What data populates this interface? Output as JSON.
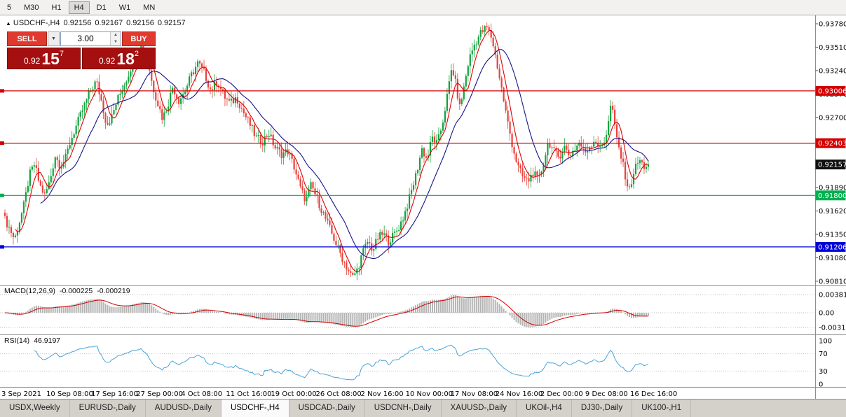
{
  "toolbar": {
    "timeframes": [
      "5",
      "M30",
      "H1",
      "H4",
      "D1",
      "W1",
      "MN"
    ],
    "active": "H4"
  },
  "icons": {
    "title_arrow": "▲",
    "dropdown": "▼",
    "spin_up": "▲",
    "spin_down": "▼"
  },
  "title": {
    "symbol": "USDCHF-,H4",
    "open": "0.92156",
    "high": "0.92167",
    "low": "0.92156",
    "close": "0.92157"
  },
  "trade_panel": {
    "sell_label": "SELL",
    "buy_label": "BUY",
    "volume": "3.00",
    "sell_small": "0.92",
    "sell_big": "15",
    "sell_sup": "7",
    "buy_small": "0.92",
    "buy_big": "18",
    "buy_sup": "2"
  },
  "price_axis": {
    "ticks": [
      "0.93780",
      "0.93510",
      "0.93240",
      "0.92970",
      "0.92700",
      "0.92430",
      "0.92160",
      "0.91890",
      "0.91620",
      "0.91350",
      "0.91080",
      "0.90810"
    ]
  },
  "levels": [
    {
      "label": "0.93006",
      "price": 0.93006,
      "color": "#d40000",
      "line": true
    },
    {
      "label": "0.92403",
      "price": 0.92403,
      "color": "#d40000",
      "line": true
    },
    {
      "label": "0.92157",
      "price": 0.92157,
      "color": "#101010",
      "line": false
    },
    {
      "label": "0.91800",
      "price": 0.918,
      "color": "#00b050",
      "line": true
    },
    {
      "label": "0.91206",
      "price": 0.91206,
      "color": "#0000d8",
      "line": true
    }
  ],
  "macd_panel": {
    "label": "MACD(12,26,9)",
    "value_main": "-0.000225",
    "value_signal": "-0.000219",
    "axis": [
      "0.00381",
      "0.00",
      "-0.00311"
    ]
  },
  "rsi_panel": {
    "label": "RSI(14)",
    "value": "46.9197",
    "axis": [
      "100",
      "70",
      "30",
      "0"
    ]
  },
  "time_axis": [
    "3 Sep 2021",
    "10 Sep 08:00",
    "17 Sep 16:00",
    "27 Sep 00:00",
    "4 Oct 08:00",
    "11 Oct 16:00",
    "19 Oct 00:00",
    "26 Oct 08:00",
    "2 Nov 16:00",
    "10 Nov 00:00",
    "17 Nov 08:00",
    "24 Nov 16:00",
    "2 Dec 00:00",
    "9 Dec 08:00",
    "16 Dec 16:00"
  ],
  "tabs": [
    {
      "label": "USDX,Weekly",
      "active": false
    },
    {
      "label": "EURUSD-,Daily",
      "active": false
    },
    {
      "label": "AUDUSD-,Daily",
      "active": false
    },
    {
      "label": "USDCHF-,H4",
      "active": true
    },
    {
      "label": "USDCAD-,Daily",
      "active": false
    },
    {
      "label": "USDCNH-,Daily",
      "active": false
    },
    {
      "label": "XAUUSD-,Daily",
      "active": false
    },
    {
      "label": "UKOil-,H4",
      "active": false
    },
    {
      "label": "DJ30-,Daily",
      "active": false
    },
    {
      "label": "UK100-,H1",
      "active": false
    }
  ],
  "chart_data": {
    "type": "candlestick",
    "symbol": "USDCHF-",
    "timeframe": "H4",
    "ohlc_current": {
      "open": 0.92156,
      "high": 0.92167,
      "low": 0.92156,
      "close": 0.92157
    },
    "y_range": [
      0.9078,
      0.939
    ],
    "num_candles": 308,
    "price_path_keyframes": [
      [
        0.0,
        0.9152
      ],
      [
        0.008,
        0.9141
      ],
      [
        0.015,
        0.9129
      ],
      [
        0.022,
        0.9148
      ],
      [
        0.03,
        0.917
      ],
      [
        0.038,
        0.9203
      ],
      [
        0.046,
        0.9216
      ],
      [
        0.054,
        0.9192
      ],
      [
        0.062,
        0.918
      ],
      [
        0.07,
        0.9197
      ],
      [
        0.078,
        0.9226
      ],
      [
        0.086,
        0.9214
      ],
      [
        0.094,
        0.9222
      ],
      [
        0.102,
        0.9243
      ],
      [
        0.112,
        0.9262
      ],
      [
        0.122,
        0.9281
      ],
      [
        0.132,
        0.9299
      ],
      [
        0.142,
        0.9312
      ],
      [
        0.15,
        0.9289
      ],
      [
        0.158,
        0.9262
      ],
      [
        0.166,
        0.927
      ],
      [
        0.174,
        0.9289
      ],
      [
        0.183,
        0.9304
      ],
      [
        0.192,
        0.932
      ],
      [
        0.202,
        0.934
      ],
      [
        0.212,
        0.9353
      ],
      [
        0.221,
        0.9341
      ],
      [
        0.229,
        0.9308
      ],
      [
        0.237,
        0.9288
      ],
      [
        0.245,
        0.9269
      ],
      [
        0.253,
        0.9284
      ],
      [
        0.261,
        0.9306
      ],
      [
        0.27,
        0.9289
      ],
      [
        0.28,
        0.9301
      ],
      [
        0.29,
        0.9319
      ],
      [
        0.3,
        0.9333
      ],
      [
        0.31,
        0.9321
      ],
      [
        0.32,
        0.9301
      ],
      [
        0.33,
        0.9312
      ],
      [
        0.34,
        0.9295
      ],
      [
        0.35,
        0.9286
      ],
      [
        0.36,
        0.9293
      ],
      [
        0.37,
        0.9277
      ],
      [
        0.38,
        0.9263
      ],
      [
        0.39,
        0.9247
      ],
      [
        0.4,
        0.9242
      ],
      [
        0.41,
        0.9252
      ],
      [
        0.42,
        0.9235
      ],
      [
        0.43,
        0.9228
      ],
      [
        0.44,
        0.9231
      ],
      [
        0.45,
        0.9212
      ],
      [
        0.46,
        0.9186
      ],
      [
        0.468,
        0.9174
      ],
      [
        0.476,
        0.9192
      ],
      [
        0.484,
        0.9178
      ],
      [
        0.492,
        0.9164
      ],
      [
        0.5,
        0.915
      ],
      [
        0.508,
        0.9136
      ],
      [
        0.516,
        0.9122
      ],
      [
        0.524,
        0.9108
      ],
      [
        0.532,
        0.9096
      ],
      [
        0.54,
        0.9085
      ],
      [
        0.548,
        0.9095
      ],
      [
        0.556,
        0.9114
      ],
      [
        0.564,
        0.9127
      ],
      [
        0.572,
        0.9117
      ],
      [
        0.58,
        0.9131
      ],
      [
        0.588,
        0.9136
      ],
      [
        0.596,
        0.9127
      ],
      [
        0.604,
        0.9134
      ],
      [
        0.612,
        0.9143
      ],
      [
        0.62,
        0.9156
      ],
      [
        0.63,
        0.918
      ],
      [
        0.64,
        0.9207
      ],
      [
        0.648,
        0.9234
      ],
      [
        0.656,
        0.9221
      ],
      [
        0.664,
        0.9247
      ],
      [
        0.672,
        0.9239
      ],
      [
        0.68,
        0.9263
      ],
      [
        0.688,
        0.9297
      ],
      [
        0.695,
        0.9329
      ],
      [
        0.701,
        0.9307
      ],
      [
        0.707,
        0.9281
      ],
      [
        0.713,
        0.9303
      ],
      [
        0.721,
        0.9336
      ],
      [
        0.729,
        0.9353
      ],
      [
        0.739,
        0.9367
      ],
      [
        0.749,
        0.9374
      ],
      [
        0.757,
        0.9361
      ],
      [
        0.765,
        0.9331
      ],
      [
        0.773,
        0.9299
      ],
      [
        0.781,
        0.9266
      ],
      [
        0.789,
        0.9237
      ],
      [
        0.797,
        0.9214
      ],
      [
        0.805,
        0.9201
      ],
      [
        0.813,
        0.9196
      ],
      [
        0.821,
        0.9207
      ],
      [
        0.829,
        0.9196
      ],
      [
        0.837,
        0.9217
      ],
      [
        0.845,
        0.9243
      ],
      [
        0.853,
        0.923
      ],
      [
        0.861,
        0.9224
      ],
      [
        0.869,
        0.9237
      ],
      [
        0.877,
        0.9226
      ],
      [
        0.885,
        0.9233
      ],
      [
        0.893,
        0.9241
      ],
      [
        0.901,
        0.9229
      ],
      [
        0.909,
        0.9237
      ],
      [
        0.917,
        0.9245
      ],
      [
        0.925,
        0.9233
      ],
      [
        0.933,
        0.9244
      ],
      [
        0.943,
        0.9289
      ],
      [
        0.949,
        0.9251
      ],
      [
        0.955,
        0.9233
      ],
      [
        0.963,
        0.9207
      ],
      [
        0.97,
        0.9184
      ],
      [
        0.978,
        0.9209
      ],
      [
        0.986,
        0.9221
      ],
      [
        0.993,
        0.9213
      ],
      [
        1.0,
        0.9216
      ]
    ],
    "colors": {
      "bull": "#13a33e",
      "bear": "#e8423c",
      "ma_fast": "#e00000",
      "ma_slow": "#151589",
      "macd_hist": "#b4b4b4",
      "macd_signal": "#d40000",
      "rsi": "#4aa3d8",
      "level_red": "#d40000",
      "level_green": "#00b050",
      "level_blue": "#0000d8"
    },
    "indicators": {
      "macd": {
        "fast": 12,
        "slow": 26,
        "signal": 9
      },
      "rsi": {
        "period": 14
      },
      "ma_fast_period": 6,
      "ma_slow_period": 18
    }
  }
}
